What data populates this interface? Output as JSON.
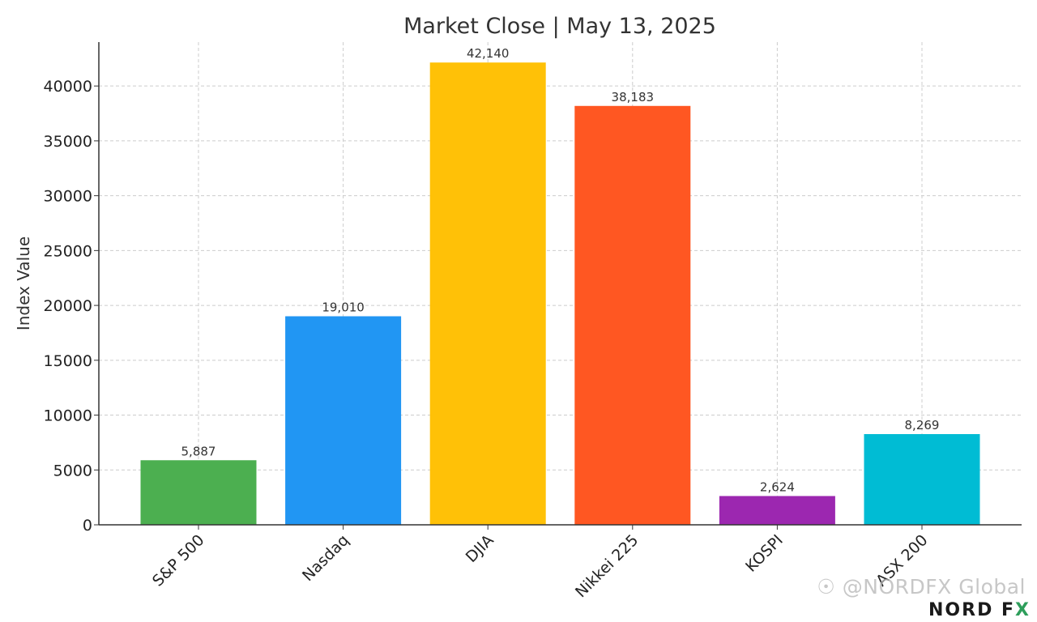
{
  "chart_data": {
    "type": "bar",
    "title": "Market Close | May 13, 2025",
    "xlabel": "",
    "ylabel": "Index Value",
    "categories": [
      "S&P 500",
      "Nasdaq",
      "DJIA",
      "Nikkei 225",
      "KOSPI",
      "ASX 200"
    ],
    "values": [
      5887,
      19010,
      42140,
      38183,
      2624,
      8269
    ],
    "value_labels": [
      "5,887",
      "19,010",
      "42,140",
      "38,183",
      "2,624",
      "8,269"
    ],
    "colors": [
      "#4caf50",
      "#2196f3",
      "#ffc107",
      "#ff5722",
      "#9c27b0",
      "#00bcd4"
    ],
    "ylim": [
      0,
      44000
    ],
    "yticks": [
      0,
      5000,
      10000,
      15000,
      20000,
      25000,
      30000,
      35000,
      40000
    ],
    "ytick_labels": [
      "0",
      "5000",
      "10000",
      "15000",
      "20000",
      "25000",
      "30000",
      "35000",
      "40000"
    ],
    "grid": true,
    "legend": "none"
  },
  "watermark": {
    "handle": "@NORDFX Global",
    "logo_text": "NORD FX",
    "logo_prefix": "NORD F",
    "logo_accent": "X"
  }
}
